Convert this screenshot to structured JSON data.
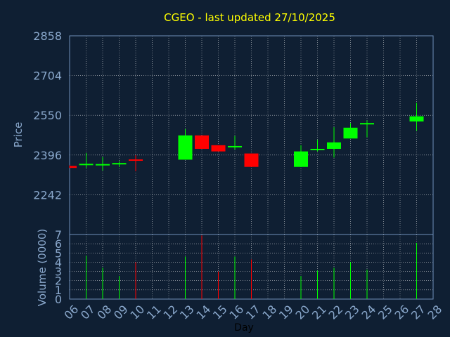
{
  "chart_data": {
    "type": "candlestick",
    "title": "CGEO - last updated 27/10/2025",
    "xlabel": "Day",
    "price_panel": {
      "ylabel": "Price",
      "ylim": [
        2088,
        2858
      ],
      "yticks": [
        "2858",
        "2704",
        "2550",
        "2396",
        "2242"
      ],
      "ytick_values": [
        2858,
        2704,
        2550,
        2396,
        2242
      ]
    },
    "volume_panel": {
      "ylabel": "Volume (0000)",
      "ylim": [
        0,
        7
      ],
      "yticks": [
        "7",
        "6",
        "5",
        "4",
        "3",
        "2",
        "1",
        "0"
      ],
      "ytick_values": [
        7,
        6,
        5,
        4,
        3,
        2,
        1,
        0
      ]
    },
    "x_ticks": [
      "06",
      "07",
      "08",
      "09",
      "10",
      "11",
      "12",
      "13",
      "14",
      "15",
      "16",
      "17",
      "18",
      "19",
      "20",
      "21",
      "22",
      "23",
      "24",
      "25",
      "26",
      "27",
      "28"
    ],
    "colors": {
      "up": "#00ff00",
      "down": "#ff0000",
      "title": "#ffff00",
      "axis": "#8aa8cc",
      "background": "#0f1f33"
    },
    "candles": [
      {
        "day": "06",
        "open": 2354,
        "high": 2356,
        "low": 2346,
        "close": 2346,
        "volume": 0
      },
      {
        "day": "07",
        "open": 2362,
        "high": 2404,
        "low": 2346,
        "close": 2362,
        "volume": 4.7
      },
      {
        "day": "08",
        "open": 2361,
        "high": 2388,
        "low": 2336,
        "close": 2361,
        "volume": 3.4
      },
      {
        "day": "09",
        "open": 2365,
        "high": 2372,
        "low": 2350,
        "close": 2365,
        "volume": 2.5
      },
      {
        "day": "10",
        "open": 2379,
        "high": 2395,
        "low": 2333,
        "close": 2374,
        "volume": 4.0
      },
      {
        "day": "13",
        "open": 2378,
        "high": 2497,
        "low": 2378,
        "close": 2472,
        "volume": 4.6
      },
      {
        "day": "14",
        "open": 2472,
        "high": 2472,
        "low": 2420,
        "close": 2420,
        "volume": 6.9
      },
      {
        "day": "15",
        "open": 2434,
        "high": 2434,
        "low": 2410,
        "close": 2410,
        "volume": 3.0
      },
      {
        "day": "16",
        "open": 2431,
        "high": 2470,
        "low": 2418,
        "close": 2431,
        "volume": 4.6
      },
      {
        "day": "17",
        "open": 2402,
        "high": 2402,
        "low": 2350,
        "close": 2350,
        "volume": 4.3
      },
      {
        "day": "20",
        "open": 2350,
        "high": 2434,
        "low": 2350,
        "close": 2410,
        "volume": 2.5
      },
      {
        "day": "21",
        "open": 2415,
        "high": 2455,
        "low": 2410,
        "close": 2420,
        "volume": 3.1
      },
      {
        "day": "22",
        "open": 2420,
        "high": 2504,
        "low": 2386,
        "close": 2445,
        "volume": 3.4
      },
      {
        "day": "23",
        "open": 2460,
        "high": 2520,
        "low": 2460,
        "close": 2502,
        "volume": 4.0
      },
      {
        "day": "24",
        "open": 2516,
        "high": 2530,
        "low": 2465,
        "close": 2520,
        "volume": 3.2
      },
      {
        "day": "27",
        "open": 2526,
        "high": 2598,
        "low": 2490,
        "close": 2546,
        "volume": 6.1
      }
    ]
  }
}
